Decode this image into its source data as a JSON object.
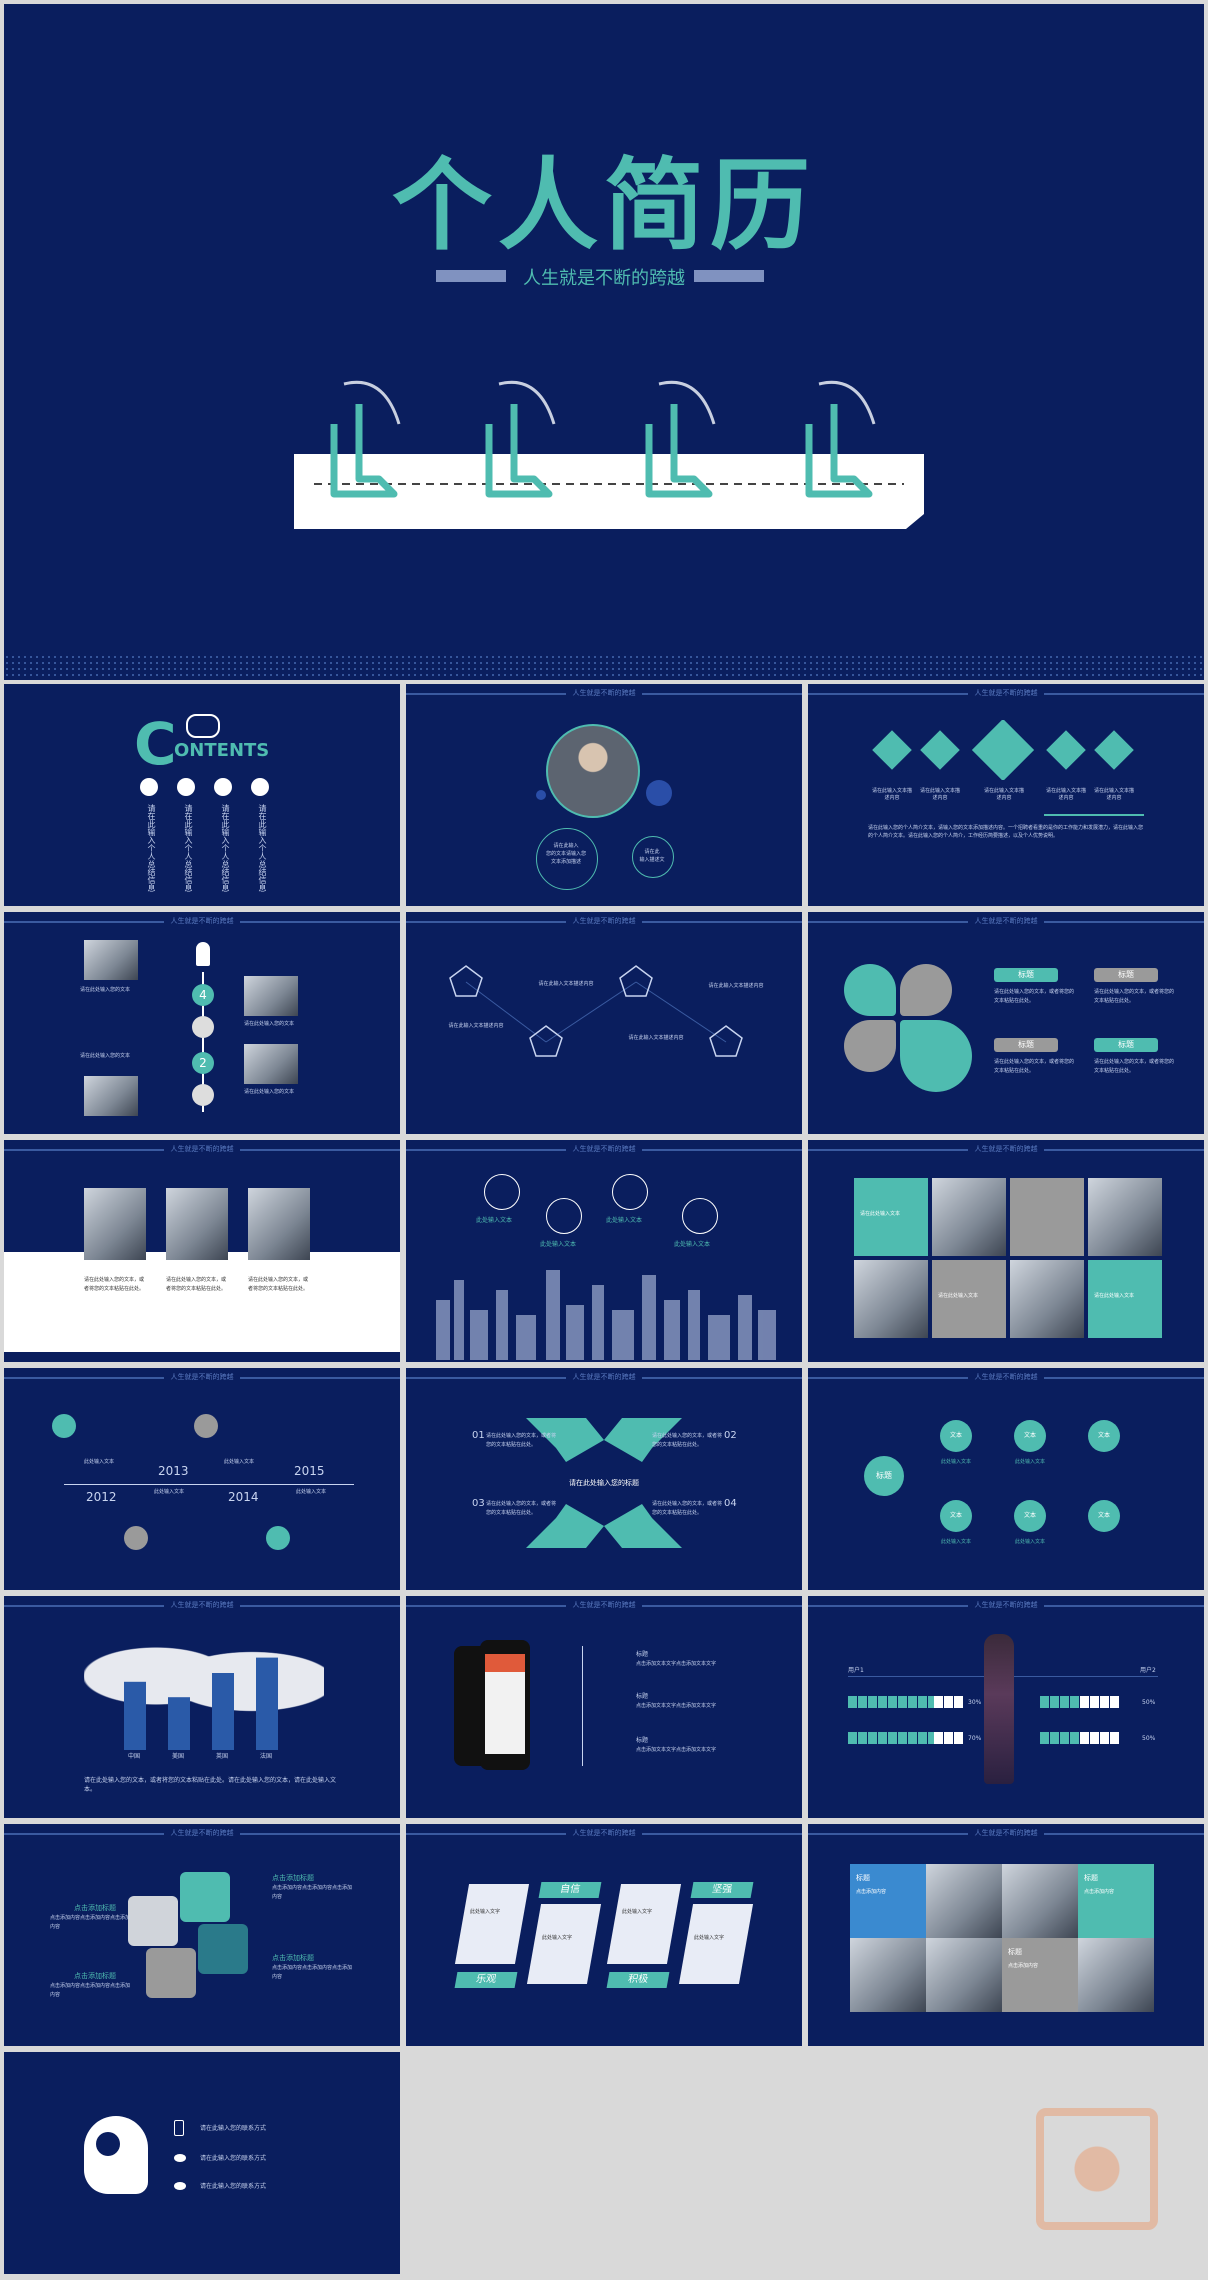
{
  "cover": {
    "title": "个人简历",
    "subtitle": "人生就是不断的跨越"
  },
  "header_text": "人生就是不断的跨越",
  "contents": {
    "big_c": "C",
    "word": "ONTENTS",
    "items": [
      "请在此输入个人总结信息",
      "请在此输入个人总结信息",
      "请在此输入个人总结信息",
      "请在此输入个人总结信息"
    ]
  },
  "profile": {
    "bubble1": [
      "请在此输入",
      "您的文本请输入您",
      "文本添加描述"
    ],
    "bubble2": [
      "请在此",
      "输入描述文"
    ]
  },
  "slide3": {
    "labels": [
      "请在此输入文本描述内容",
      "请在此输入文本描述内容",
      "请在此输入文本描述内容",
      "请在此输入文本描述内容",
      "请在此输入文本描述内容"
    ],
    "paragraph": "请在此输入您的个人简介文本，请输入您的文本添加描述内容。一个招聘者看重的是你的工作能力和发展潜力，请在此输入您的个人简介文本。请在此输入您的个人简介，工作经历简要描述，以及个人优势说明。"
  },
  "timeline_v": {
    "nums": [
      "4",
      "2"
    ],
    "text": "请在此处输入您的文本"
  },
  "network": {
    "text": "请在此输入文本描述内容"
  },
  "quad": {
    "tags": [
      "标题",
      "标题",
      "标题",
      "标题"
    ],
    "text": "请在此处输入您的文本，或者将您的文本粘贴在此处。"
  },
  "people": {
    "text": "请在此处输入您的文本，或者将您的文本粘贴在此处。"
  },
  "city": {
    "text": "此处输入文本"
  },
  "mosaic": {
    "text": "请在此处输入文本"
  },
  "years": {
    "labels": [
      "2012",
      "2013",
      "2014",
      "2015"
    ],
    "text": "此处输入文本"
  },
  "arrows": {
    "nums": [
      "01",
      "02",
      "03",
      "04"
    ],
    "center": "请在此处输入您的标题",
    "text": "请在此处输入您的文本，或者将您的文本粘贴在此处。"
  },
  "flow": {
    "root": "标题",
    "node": "文本",
    "text": "此处输入文本"
  },
  "worldbar": {
    "categories": [
      "中国",
      "美国",
      "英国",
      "法国"
    ],
    "text": "请在此处输入您的文本，或者将您的文本粘贴在此处。请在此处输入您的文本，请在此处输入文本。"
  },
  "phone": {
    "label": "标题",
    "text": "点击添加文本文字点击添加文本文字"
  },
  "progress": {
    "left": "用户1",
    "right": "用户2",
    "pcts": [
      "30%",
      "70%",
      "50%",
      "50%"
    ]
  },
  "puzzle": {
    "title": "点击添加标题",
    "text": "点击添加内容点击添加内容点击添加内容"
  },
  "traits": {
    "labels": [
      "自信",
      "坚强",
      "乐观",
      "积极"
    ],
    "text": "此处输入文字"
  },
  "team": {
    "title": "标题",
    "text": "点击添加内容"
  },
  "contact": {
    "items": [
      "请在此输入您的联系方式",
      "请在此输入您的联系方式",
      "请在此输入您的联系方式"
    ]
  },
  "colors": {
    "navy": "#0a1e5e",
    "teal": "#4fbcb0",
    "grey": "#9a9a9a",
    "page": "#d9d9d9",
    "watermark": "#e8a27a"
  }
}
